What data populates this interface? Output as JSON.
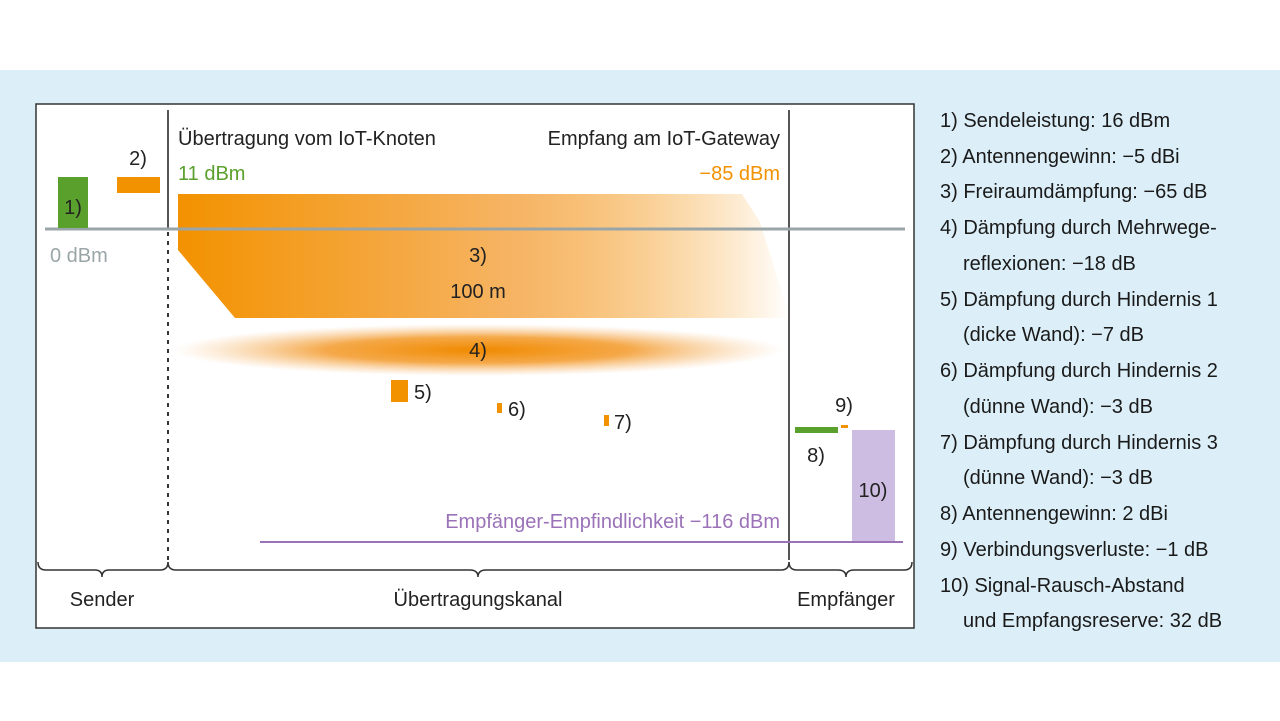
{
  "colors": {
    "band": "#dceef7",
    "green": "#5aa02c",
    "orange": "#f39200",
    "purple_fill": "#cdbde2",
    "purple_text": "#9b72b8",
    "gray": "#9aa5a8"
  },
  "diagram": {
    "heading_left": "Übertragung vom IoT-Knoten",
    "heading_left_value": "11 dBm",
    "heading_right": "Empfang am IoT-Gateway",
    "heading_right_value": "−85 dBm",
    "zero_label": "0 dBm",
    "markers": {
      "m1": "1)",
      "m2": "2)",
      "m3": "3)",
      "m3_distance": "100 m",
      "m4": "4)",
      "m5": "5)",
      "m6": "6)",
      "m7": "7)",
      "m8": "8)",
      "m9": "9)",
      "m10": "10)"
    },
    "sensitivity_label": "Empfänger-Empfindlichkeit −116 dBm",
    "sections": [
      "Sender",
      "Übertragungskanal",
      "Empfänger"
    ]
  },
  "legend": [
    [
      "1) Sendeleistung: 16 dBm"
    ],
    [
      "2) Antennengewinn: −5 dBi"
    ],
    [
      "3) Freiraumdämpfung: −65 dB"
    ],
    [
      "4) Dämpfung durch Mehrwege-",
      "reflexionen: −18 dB"
    ],
    [
      "5) Dämpfung durch Hindernis 1",
      "(dicke Wand): −7 dB"
    ],
    [
      "6) Dämpfung durch Hindernis 2",
      "(dünne Wand): −3 dB"
    ],
    [
      "7) Dämpfung durch Hindernis 3",
      "(dünne Wand): −3 dB"
    ],
    [
      "8) Antennengewinn: 2 dBi"
    ],
    [
      "9) Verbindungsverluste: −1 dB"
    ],
    [
      "10) Signal-Rausch-Abstand",
      "und Empfangsreserve: 32 dB"
    ]
  ]
}
